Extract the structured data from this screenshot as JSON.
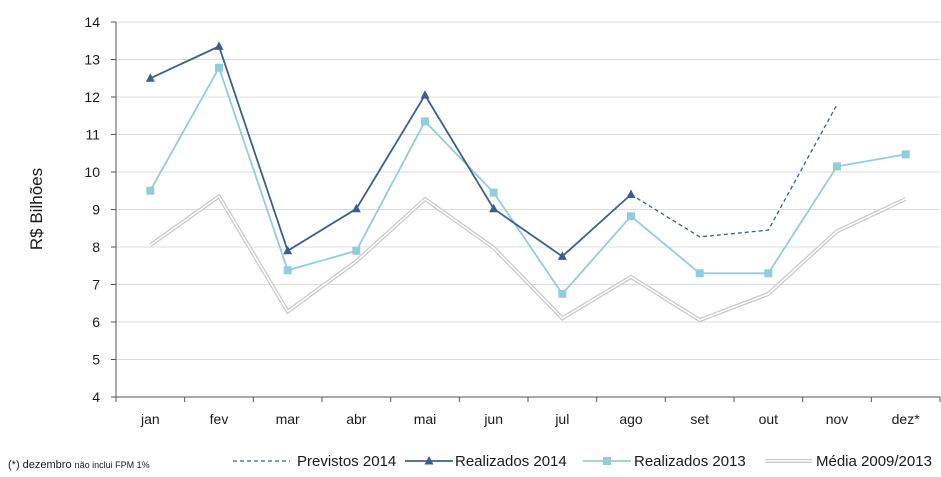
{
  "chart_data": {
    "type": "line",
    "ylabel": "R$ Bilhões",
    "xlabel": "",
    "ylim": [
      4,
      14
    ],
    "yticks": [
      4,
      5,
      6,
      7,
      8,
      9,
      10,
      11,
      12,
      13,
      14
    ],
    "categories": [
      "jan",
      "fev",
      "mar",
      "abr",
      "mai",
      "jun",
      "jul",
      "ago",
      "set",
      "out",
      "nov",
      "dez*"
    ],
    "grid": "horizontal",
    "legend_position": "bottom",
    "series": [
      {
        "name": "Previstos 2014",
        "style": "dashed",
        "color": "#3c5f8f",
        "values": [
          null,
          null,
          null,
          null,
          null,
          null,
          null,
          9.4,
          8.27,
          8.45,
          11.8,
          null
        ]
      },
      {
        "name": "Realizados 2014",
        "style": "solid",
        "marker": "triangle",
        "color": "#3c5f8f",
        "values": [
          12.5,
          13.35,
          7.9,
          9.02,
          12.05,
          9.02,
          7.75,
          9.4,
          null,
          null,
          null,
          null
        ]
      },
      {
        "name": "Realizados 2013",
        "style": "solid",
        "marker": "square",
        "color": "#92cddd",
        "values": [
          9.5,
          12.78,
          7.38,
          7.9,
          11.35,
          9.45,
          6.75,
          8.82,
          7.3,
          7.3,
          10.15,
          10.47
        ]
      },
      {
        "name": "Média 2009/2013",
        "style": "double",
        "color": "#c8c8c8",
        "values": [
          8.05,
          9.35,
          6.28,
          7.62,
          9.28,
          7.98,
          6.1,
          7.2,
          6.05,
          6.75,
          8.42,
          9.28
        ]
      }
    ]
  },
  "footnote": {
    "main": "(*) dezembro",
    "small": "não inclui FPM 1%"
  }
}
